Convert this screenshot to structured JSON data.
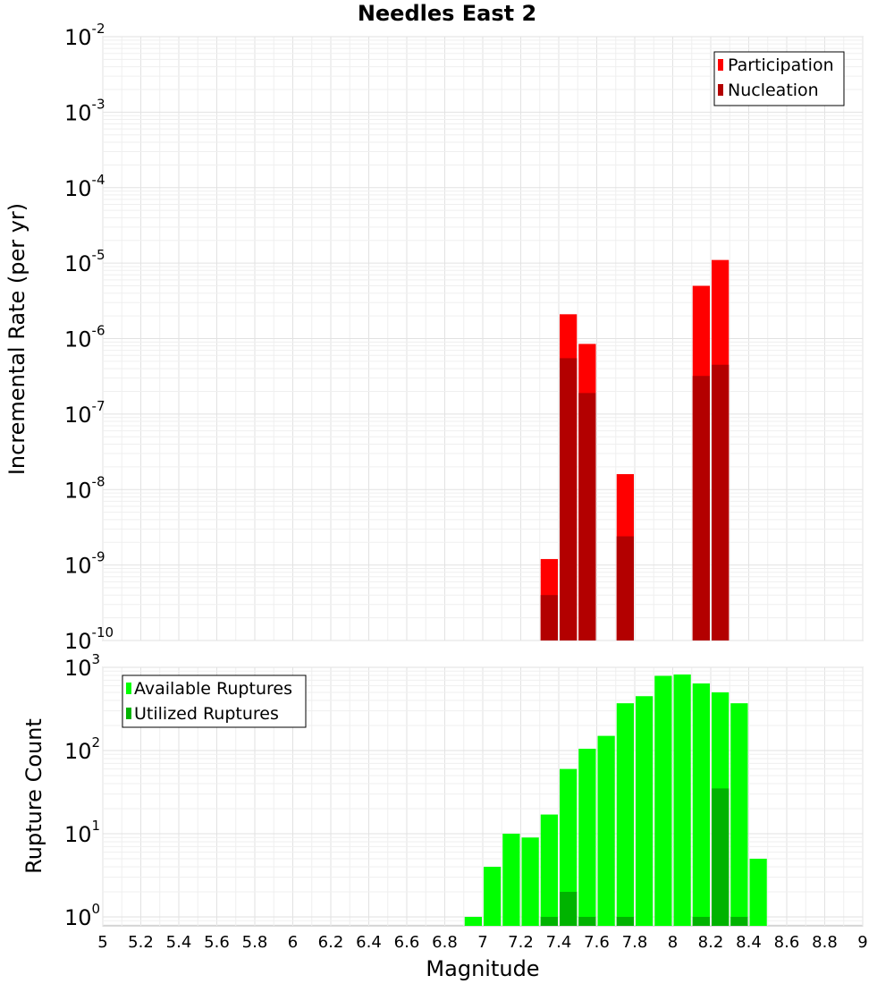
{
  "colors": {
    "participation": "#ff0000",
    "nucleation": "#b30000",
    "available": "#00ff00",
    "utilized": "#00b300",
    "bar_separator": "#ffffff"
  },
  "chart_data": [
    {
      "type": "bar",
      "title": "Needles East 2",
      "xlabel": "",
      "ylabel": "Incremental Rate (per yr)",
      "yscale": "log",
      "ylim": [
        1e-10,
        0.01
      ],
      "xlim": [
        5,
        9
      ],
      "bar_width": 0.1,
      "ytick_exponents": [
        -10,
        -9,
        -8,
        -7,
        -6,
        -5,
        -4,
        -3,
        -2
      ],
      "grid": true,
      "legend_position": "top-right",
      "series": [
        {
          "name": "Participation",
          "color_key": "participation",
          "points": [
            {
              "x": 7.35,
              "y": 1.2e-09
            },
            {
              "x": 7.45,
              "y": 2.1e-06
            },
            {
              "x": 7.55,
              "y": 8.5e-07
            },
            {
              "x": 7.75,
              "y": 1.6e-08
            },
            {
              "x": 8.15,
              "y": 5e-06
            },
            {
              "x": 8.25,
              "y": 1.1e-05
            }
          ]
        },
        {
          "name": "Nucleation",
          "color_key": "nucleation",
          "points": [
            {
              "x": 7.35,
              "y": 4e-10
            },
            {
              "x": 7.45,
              "y": 5.5e-07
            },
            {
              "x": 7.55,
              "y": 1.9e-07
            },
            {
              "x": 7.75,
              "y": 2.4e-09
            },
            {
              "x": 8.15,
              "y": 3.2e-07
            },
            {
              "x": 8.25,
              "y": 4.5e-07
            }
          ]
        }
      ]
    },
    {
      "type": "bar",
      "title": "",
      "xlabel": "Magnitude",
      "ylabel": "Rupture Count",
      "yscale": "log",
      "ylim": [
        0.78,
        1000
      ],
      "xlim": [
        5,
        9
      ],
      "bar_width": 0.1,
      "ytick_exponents": [
        0,
        1,
        2,
        3
      ],
      "xticks": [
        "5",
        "5.2",
        "5.4",
        "5.6",
        "5.8",
        "6",
        "6.2",
        "6.4",
        "6.6",
        "6.8",
        "7",
        "7.2",
        "7.4",
        "7.6",
        "7.8",
        "8",
        "8.2",
        "8.4",
        "8.6",
        "8.8",
        "9"
      ],
      "grid": true,
      "legend_position": "top-left",
      "series": [
        {
          "name": "Available Ruptures",
          "color_key": "available",
          "points": [
            {
              "x": 6.95,
              "y": 1
            },
            {
              "x": 7.05,
              "y": 4
            },
            {
              "x": 7.15,
              "y": 10
            },
            {
              "x": 7.25,
              "y": 9
            },
            {
              "x": 7.35,
              "y": 17
            },
            {
              "x": 7.45,
              "y": 60
            },
            {
              "x": 7.55,
              "y": 105
            },
            {
              "x": 7.65,
              "y": 150
            },
            {
              "x": 7.75,
              "y": 370
            },
            {
              "x": 7.85,
              "y": 450
            },
            {
              "x": 7.95,
              "y": 790
            },
            {
              "x": 8.05,
              "y": 820
            },
            {
              "x": 8.15,
              "y": 640
            },
            {
              "x": 8.25,
              "y": 500
            },
            {
              "x": 8.35,
              "y": 370
            },
            {
              "x": 8.45,
              "y": 5
            }
          ]
        },
        {
          "name": "Utilized Ruptures",
          "color_key": "utilized",
          "points": [
            {
              "x": 7.35,
              "y": 1
            },
            {
              "x": 7.45,
              "y": 2
            },
            {
              "x": 7.55,
              "y": 1
            },
            {
              "x": 7.75,
              "y": 1
            },
            {
              "x": 8.15,
              "y": 1
            },
            {
              "x": 8.25,
              "y": 35
            },
            {
              "x": 8.35,
              "y": 1
            }
          ]
        }
      ]
    }
  ]
}
